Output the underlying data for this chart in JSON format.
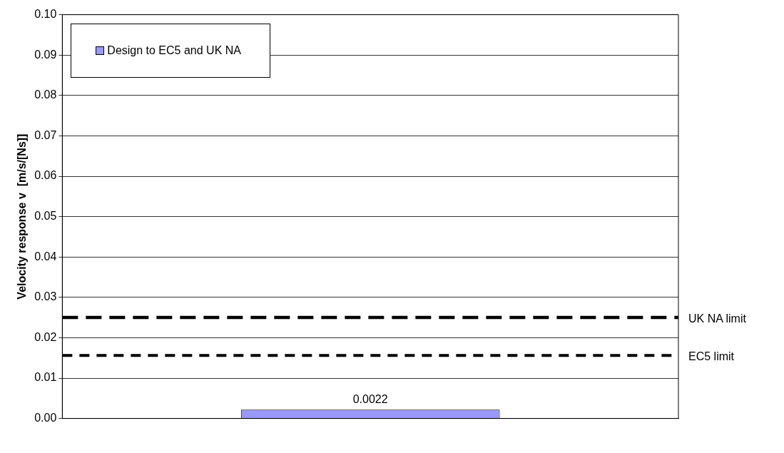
{
  "chart_data": {
    "type": "bar",
    "ylabel": "Velocity response v  [m/s/[Ns]]",
    "categories": [
      null
    ],
    "series": [
      {
        "name": "Design to EC5 and UK NA",
        "color": "#9999ff",
        "values": [
          0.0022
        ]
      }
    ],
    "data_labels": true,
    "ylim": [
      0,
      0.1
    ],
    "yticks": [
      {
        "value": 0,
        "label": "0.00"
      },
      {
        "value": 0.01,
        "label": "0.01"
      },
      {
        "value": 0.02,
        "label": "0.02"
      },
      {
        "value": 0.03,
        "label": "0.03"
      },
      {
        "value": 0.04,
        "label": "0.04"
      },
      {
        "value": 0.05,
        "label": "0.05"
      },
      {
        "value": 0.06,
        "label": "0.06"
      },
      {
        "value": 0.07,
        "label": "0.07"
      },
      {
        "value": 0.08,
        "label": "0.08"
      },
      {
        "value": 0.09,
        "label": "0.09"
      },
      {
        "value": 0.1,
        "label": "0.10"
      }
    ],
    "grid": "y",
    "legend": "top left",
    "ref_lines": [
      {
        "axis": "y",
        "value": 0.025,
        "label": "UK NA limit",
        "color": "#000000",
        "line_style": "dashed"
      },
      {
        "axis": "y",
        "value": 0.0156,
        "label": "EC5 limit",
        "color": "#000000",
        "line_style": "dotted"
      }
    ]
  }
}
